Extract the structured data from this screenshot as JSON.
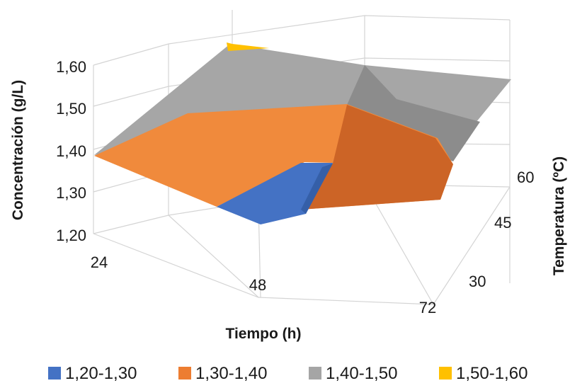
{
  "chart_data": {
    "type": "surface",
    "title": "",
    "xlabel": "Tiempo (h)",
    "ylabel": "Temperatura (ºC)",
    "zlabel": "Concentración (g/L)",
    "x_ticks": [
      "24",
      "48",
      "72"
    ],
    "y_ticks": [
      "30",
      "45",
      "60"
    ],
    "z_ticks": [
      "1,20",
      "1,30",
      "1,40",
      "1,50",
      "1,60"
    ],
    "zlim": [
      1.2,
      1.6
    ],
    "grid": true,
    "legend_position": "bottom",
    "bands": [
      {
        "name": "1,20-1,30",
        "range": [
          1.2,
          1.3
        ],
        "color": "#4472C4"
      },
      {
        "name": "1,30-1,40",
        "range": [
          1.3,
          1.4
        ],
        "color": "#ED7D31"
      },
      {
        "name": "1,40-1,50",
        "range": [
          1.4,
          1.5
        ],
        "color": "#A5A5A5"
      },
      {
        "name": "1,50-1,60",
        "range": [
          1.5,
          1.6
        ],
        "color": "#FFC000"
      }
    ],
    "surface": {
      "x": [
        24,
        48,
        72
      ],
      "y": [
        30,
        45,
        60
      ],
      "z": [
        [
          1.38,
          1.23,
          1.34
        ],
        [
          1.45,
          1.36,
          1.41
        ],
        [
          1.52,
          1.6,
          1.58
        ]
      ]
    }
  }
}
